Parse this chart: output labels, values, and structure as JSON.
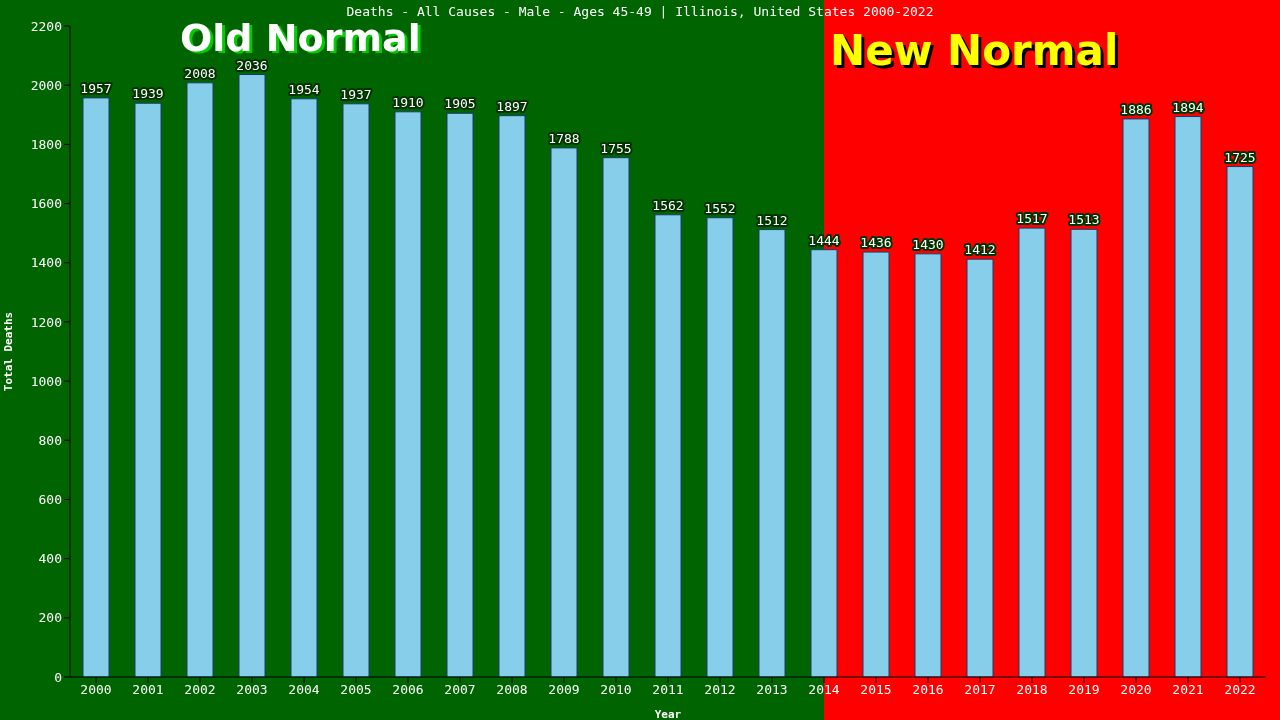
{
  "chart_data": {
    "type": "bar",
    "title": "Deaths - All Causes - Male - Ages 45-49 | Illinois, United States 2000-2022",
    "xlabel": "Year",
    "ylabel": "Total Deaths",
    "categories": [
      "2000",
      "2001",
      "2002",
      "2003",
      "2004",
      "2005",
      "2006",
      "2007",
      "2008",
      "2009",
      "2010",
      "2011",
      "2012",
      "2013",
      "2014",
      "2015",
      "2016",
      "2017",
      "2018",
      "2019",
      "2020",
      "2021",
      "2022"
    ],
    "values": [
      1957,
      1939,
      2008,
      2036,
      1954,
      1937,
      1910,
      1905,
      1897,
      1788,
      1755,
      1562,
      1552,
      1512,
      1444,
      1436,
      1430,
      1412,
      1517,
      1513,
      1886,
      1894,
      1725
    ],
    "color": "#87ceeb",
    "data_labels": true,
    "ylim": [
      0,
      2200
    ],
    "yticks": [
      0,
      200,
      400,
      600,
      800,
      1000,
      1200,
      1400,
      1600,
      1800,
      2000,
      2200
    ],
    "grid": false,
    "legend": false,
    "bands": [
      {
        "axis": "x",
        "from": "2000",
        "to": "2014",
        "color": "#006400"
      },
      {
        "axis": "x",
        "from": "2014",
        "to": "2022",
        "color": "#ff0000"
      }
    ],
    "annotations": [
      "Old Normal",
      "New Normal"
    ]
  }
}
